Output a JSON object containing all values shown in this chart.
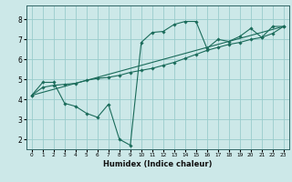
{
  "title": "",
  "xlabel": "Humidex (Indice chaleur)",
  "background_color": "#cce8e8",
  "grid_color": "#99cccc",
  "line_color": "#1a6b5a",
  "x_ticks": [
    0,
    1,
    2,
    3,
    4,
    5,
    6,
    7,
    8,
    9,
    10,
    11,
    12,
    13,
    14,
    15,
    16,
    17,
    18,
    19,
    20,
    21,
    22,
    23
  ],
  "y_ticks": [
    2,
    3,
    4,
    5,
    6,
    7,
    8
  ],
  "ylim": [
    1.5,
    8.7
  ],
  "xlim": [
    -0.5,
    23.5
  ],
  "curve1_x": [
    0,
    1,
    2,
    3,
    4,
    5,
    6,
    7,
    8,
    9,
    10,
    11,
    12,
    13,
    14,
    15,
    16,
    17,
    18,
    19,
    20,
    21,
    22,
    23
  ],
  "curve1_y": [
    4.2,
    4.85,
    4.85,
    3.8,
    3.65,
    3.3,
    3.1,
    3.75,
    2.0,
    1.7,
    6.85,
    7.35,
    7.4,
    7.75,
    7.9,
    7.9,
    6.55,
    7.0,
    6.9,
    7.15,
    7.55,
    7.1,
    7.65,
    7.65
  ],
  "curve2_x": [
    0,
    1,
    2,
    3,
    4,
    5,
    6,
    7,
    8,
    9,
    10,
    11,
    12,
    13,
    14,
    15,
    16,
    17,
    18,
    19,
    20,
    21,
    22,
    23
  ],
  "curve2_y": [
    4.2,
    4.6,
    4.7,
    4.75,
    4.8,
    4.95,
    5.05,
    5.1,
    5.2,
    5.35,
    5.45,
    5.55,
    5.7,
    5.85,
    6.05,
    6.25,
    6.45,
    6.6,
    6.75,
    6.85,
    7.0,
    7.1,
    7.3,
    7.65
  ],
  "line_x": [
    0,
    23
  ],
  "line_y": [
    4.2,
    7.65
  ]
}
